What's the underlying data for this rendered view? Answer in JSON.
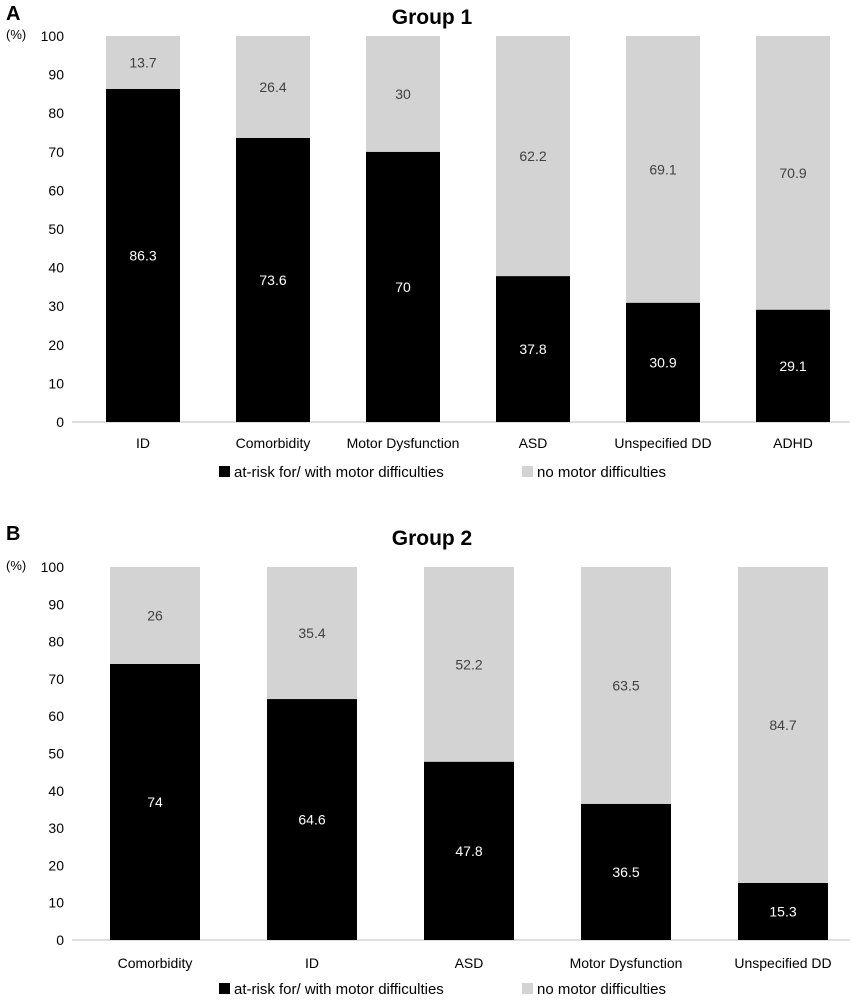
{
  "chart_data": [
    {
      "panel_label": "A",
      "type": "bar",
      "stacked": true,
      "title": "Group 1",
      "ylabel": "(%)",
      "xlabel": "",
      "ylim": [
        0,
        100
      ],
      "yticks": [
        0,
        10,
        20,
        30,
        40,
        50,
        60,
        70,
        80,
        90,
        100
      ],
      "grid": false,
      "legend_position": "bottom-center",
      "categories": [
        "ID",
        "Comorbidity",
        "Motor Dysfunction",
        "ASD",
        "Unspecified DD",
        "ADHD"
      ],
      "series": [
        {
          "name": "at-risk for/ with motor difficulties",
          "color": "#000000",
          "label_color": "#ffffff",
          "values": [
            86.3,
            73.6,
            70,
            37.8,
            30.9,
            29.1
          ]
        },
        {
          "name": "no motor difficulties",
          "color": "#d3d3d3",
          "label_color": "#404040",
          "values": [
            13.7,
            26.4,
            30,
            62.2,
            69.1,
            70.9
          ]
        }
      ]
    },
    {
      "panel_label": "B",
      "type": "bar",
      "stacked": true,
      "title": "Group 2",
      "ylabel": "(%)",
      "xlabel": "",
      "ylim": [
        0,
        100
      ],
      "yticks": [
        0,
        10,
        20,
        30,
        40,
        50,
        60,
        70,
        80,
        90,
        100
      ],
      "grid": false,
      "legend_position": "bottom-center",
      "categories": [
        "Comorbidity",
        "ID",
        "ASD",
        "Motor Dysfunction",
        "Unspecified DD"
      ],
      "series": [
        {
          "name": "at-risk for/ with motor difficulties",
          "color": "#000000",
          "label_color": "#ffffff",
          "values": [
            74,
            64.6,
            47.8,
            36.5,
            15.3
          ]
        },
        {
          "name": "no motor difficulties",
          "color": "#d3d3d3",
          "label_color": "#404040",
          "values": [
            26,
            35.4,
            52.2,
            63.5,
            84.7
          ]
        }
      ]
    }
  ]
}
